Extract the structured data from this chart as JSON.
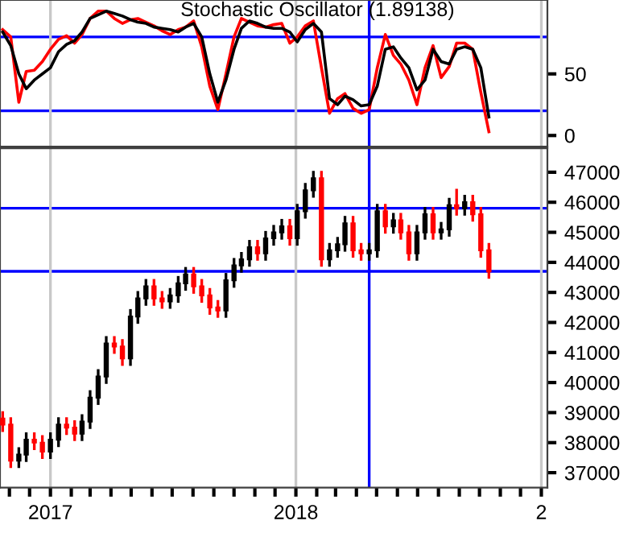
{
  "chart_data": [
    {
      "type": "line",
      "title": "Stochastic Oscillator (1.89138)",
      "x": [
        "2016-10-22",
        "2016-11-03",
        "2016-11-15",
        "2016-11-26",
        "2016-12-08",
        "2016-12-20",
        "2017-01-01",
        "2017-01-13",
        "2017-01-25",
        "2017-02-06",
        "2017-02-17",
        "2017-03-01",
        "2017-03-13",
        "2017-03-25",
        "2017-04-06",
        "2017-04-18",
        "2017-04-30",
        "2017-05-11",
        "2017-05-23",
        "2017-06-04",
        "2017-06-16",
        "2017-06-28",
        "2017-07-10",
        "2017-07-21",
        "2017-08-02",
        "2017-08-14",
        "2017-08-26",
        "2017-09-07",
        "2017-09-19",
        "2017-10-01",
        "2017-10-12",
        "2017-10-24",
        "2017-11-05",
        "2017-11-17",
        "2017-11-29",
        "2017-12-11",
        "2017-12-23",
        "2018-01-03",
        "2018-01-15",
        "2018-01-27",
        "2018-02-08",
        "2018-02-20",
        "2018-03-04",
        "2018-03-15",
        "2018-03-27",
        "2018-04-08",
        "2018-04-20",
        "2018-05-02",
        "2018-05-14",
        "2018-05-26",
        "2018-06-06",
        "2018-06-18",
        "2018-06-30",
        "2018-07-12",
        "2018-07-24",
        "2018-08-05",
        "2018-08-17",
        "2018-08-28",
        "2018-09-09",
        "2018-09-21",
        "2018-10-03",
        "2018-10-15"
      ],
      "series": [
        {
          "color": "#ff0000",
          "values": [
            86,
            80,
            27,
            52,
            53,
            60,
            70,
            78,
            81,
            75,
            82,
            95,
            101,
            101,
            95,
            91,
            94,
            95,
            92,
            89,
            85,
            82,
            86,
            88,
            93,
            72,
            40,
            21,
            50,
            80,
            95,
            92,
            89,
            88,
            90,
            91,
            75,
            80,
            89,
            93,
            55,
            18,
            30,
            34,
            22,
            18,
            21,
            55,
            82,
            65,
            58,
            45,
            25,
            55,
            73,
            47,
            56,
            75,
            75,
            70,
            35,
            3
          ]
        },
        {
          "color": "#000000",
          "values": [
            84,
            73,
            50,
            38,
            45,
            50,
            55,
            68,
            74,
            77,
            84,
            95,
            98,
            101,
            99,
            97,
            94,
            92,
            91,
            88,
            87,
            86,
            84,
            88,
            91,
            80,
            50,
            27,
            45,
            70,
            87,
            93,
            91,
            88,
            87,
            87,
            84,
            76,
            86,
            91,
            84,
            30,
            25,
            32,
            29,
            24,
            25,
            40,
            70,
            72,
            63,
            55,
            37,
            45,
            70,
            60,
            58,
            70,
            72,
            70,
            55,
            15
          ]
        }
      ],
      "xlim": [
        "2016-10-18",
        "2019-01-10"
      ],
      "ylim": [
        -9,
        110
      ],
      "yticks": [
        0,
        50
      ],
      "tick_labels": "y",
      "ref_lines": [
        {
          "axis": "y",
          "value": 80,
          "color": "#0000ff"
        },
        {
          "axis": "y",
          "value": 20,
          "color": "#0000ff"
        },
        {
          "axis": "x",
          "value": "2018-04-20",
          "color": "#0000ff"
        },
        {
          "axis": "x",
          "value": "2017-01-01",
          "color": "#c8c8c8"
        },
        {
          "axis": "x",
          "value": "2018-01-01",
          "color": "#c8c8c8"
        },
        {
          "axis": "x",
          "value": "2019-01-01",
          "color": "#c8c8c8"
        }
      ]
    },
    {
      "type": "candlestick",
      "x": [
        "2016-10-22",
        "2016-11-03",
        "2016-11-15",
        "2016-11-26",
        "2016-12-08",
        "2016-12-20",
        "2017-01-01",
        "2017-01-13",
        "2017-01-25",
        "2017-02-06",
        "2017-02-17",
        "2017-03-01",
        "2017-03-13",
        "2017-03-25",
        "2017-04-06",
        "2017-04-18",
        "2017-04-30",
        "2017-05-11",
        "2017-05-23",
        "2017-06-04",
        "2017-06-16",
        "2017-06-28",
        "2017-07-10",
        "2017-07-21",
        "2017-08-02",
        "2017-08-14",
        "2017-08-26",
        "2017-09-07",
        "2017-09-19",
        "2017-10-01",
        "2017-10-12",
        "2017-10-24",
        "2017-11-05",
        "2017-11-17",
        "2017-11-29",
        "2017-12-11",
        "2017-12-23",
        "2018-01-03",
        "2018-01-15",
        "2018-01-27",
        "2018-02-08",
        "2018-02-20",
        "2018-03-04",
        "2018-03-15",
        "2018-03-27",
        "2018-04-08",
        "2018-04-20",
        "2018-05-02",
        "2018-05-14",
        "2018-05-26",
        "2018-06-06",
        "2018-06-18",
        "2018-06-30",
        "2018-07-12",
        "2018-07-24",
        "2018-08-05",
        "2018-08-17",
        "2018-08-28",
        "2018-09-09",
        "2018-09-21",
        "2018-10-03",
        "2018-10-15"
      ],
      "ohlc": [
        [
          38800,
          39000,
          38400,
          38600
        ],
        [
          38600,
          38800,
          37200,
          37400
        ],
        [
          37400,
          37800,
          37200,
          37600
        ],
        [
          37600,
          38300,
          37400,
          38100
        ],
        [
          38100,
          38300,
          37800,
          38000
        ],
        [
          38000,
          38200,
          37500,
          37700
        ],
        [
          37700,
          38300,
          37500,
          38100
        ],
        [
          38100,
          38800,
          37900,
          38600
        ],
        [
          38600,
          38800,
          38300,
          38500
        ],
        [
          38500,
          38700,
          38100,
          38300
        ],
        [
          38300,
          38900,
          38100,
          38700
        ],
        [
          38700,
          39700,
          38500,
          39500
        ],
        [
          39500,
          40400,
          39300,
          40200
        ],
        [
          40200,
          41500,
          40000,
          41300
        ],
        [
          41300,
          41500,
          41000,
          41200
        ],
        [
          41200,
          41400,
          40600,
          40800
        ],
        [
          40800,
          42400,
          40600,
          42200
        ],
        [
          42200,
          43000,
          42000,
          42800
        ],
        [
          42800,
          43400,
          42600,
          43200
        ],
        [
          43200,
          43400,
          42600,
          42800
        ],
        [
          42800,
          43000,
          42500,
          42700
        ],
        [
          42700,
          43100,
          42500,
          42900
        ],
        [
          42900,
          43500,
          42700,
          43300
        ],
        [
          43300,
          43800,
          43100,
          43600
        ],
        [
          43600,
          43800,
          43000,
          43200
        ],
        [
          43200,
          43400,
          42700,
          42900
        ],
        [
          42900,
          43100,
          42300,
          42500
        ],
        [
          42500,
          42700,
          42200,
          42400
        ],
        [
          42400,
          43600,
          42200,
          43400
        ],
        [
          43400,
          44100,
          43200,
          43900
        ],
        [
          43900,
          44300,
          43700,
          44100
        ],
        [
          44100,
          44700,
          43900,
          44500
        ],
        [
          44500,
          44700,
          44100,
          44300
        ],
        [
          44300,
          45000,
          44100,
          44800
        ],
        [
          44800,
          45200,
          44600,
          45000
        ],
        [
          45000,
          45400,
          44800,
          45200
        ],
        [
          45200,
          45400,
          44600,
          44800
        ],
        [
          44800,
          45900,
          44600,
          45700
        ],
        [
          45700,
          46600,
          45500,
          46400
        ],
        [
          46400,
          47000,
          46200,
          46800
        ],
        [
          46800,
          47000,
          43900,
          44100
        ],
        [
          44100,
          44600,
          43900,
          44400
        ],
        [
          44400,
          44800,
          44200,
          44600
        ],
        [
          44600,
          45500,
          44400,
          45300
        ],
        [
          45300,
          45500,
          44200,
          44400
        ],
        [
          44400,
          44600,
          44100,
          44300
        ],
        [
          44300,
          44600,
          44100,
          44400
        ],
        [
          44400,
          45900,
          44200,
          45700
        ],
        [
          45700,
          45900,
          45000,
          45200
        ],
        [
          45200,
          45600,
          45000,
          45400
        ],
        [
          45400,
          45600,
          44800,
          45000
        ],
        [
          45000,
          45200,
          44100,
          44300
        ],
        [
          44300,
          45200,
          44100,
          45000
        ],
        [
          45000,
          45800,
          44800,
          45600
        ],
        [
          45600,
          45800,
          44800,
          45000
        ],
        [
          45000,
          45300,
          44800,
          45100
        ],
        [
          45100,
          46100,
          44900,
          45900
        ],
        [
          45900,
          46400,
          45600,
          45800
        ],
        [
          45800,
          46200,
          45600,
          46000
        ],
        [
          46000,
          46200,
          45400,
          45600
        ],
        [
          45600,
          45800,
          44200,
          44400
        ],
        [
          44400,
          44600,
          43500,
          43700
        ]
      ],
      "colors": [
        "#ff0000",
        "#ff0000",
        "#000000",
        "#000000",
        "#ff0000",
        "#ff0000",
        "#000000",
        "#000000",
        "#ff0000",
        "#ff0000",
        "#000000",
        "#000000",
        "#000000",
        "#000000",
        "#ff0000",
        "#ff0000",
        "#000000",
        "#000000",
        "#000000",
        "#ff0000",
        "#ff0000",
        "#000000",
        "#000000",
        "#000000",
        "#ff0000",
        "#ff0000",
        "#ff0000",
        "#ff0000",
        "#000000",
        "#000000",
        "#000000",
        "#000000",
        "#ff0000",
        "#000000",
        "#000000",
        "#000000",
        "#ff0000",
        "#000000",
        "#000000",
        "#000000",
        "#ff0000",
        "#000000",
        "#000000",
        "#000000",
        "#ff0000",
        "#ff0000",
        "#000000",
        "#000000",
        "#ff0000",
        "#000000",
        "#ff0000",
        "#ff0000",
        "#000000",
        "#000000",
        "#ff0000",
        "#000000",
        "#000000",
        "#ff0000",
        "#000000",
        "#ff0000",
        "#ff0000",
        "#ff0000"
      ],
      "xlim": [
        "2016-10-18",
        "2019-01-10"
      ],
      "ylim": [
        36500,
        47800
      ],
      "yticks": [
        37000,
        38000,
        39000,
        40000,
        41000,
        42000,
        43000,
        44000,
        45000,
        46000,
        47000
      ],
      "xticks": [
        {
          "value": "2016-11-01",
          "label": null
        },
        {
          "value": "2016-12-01",
          "label": null
        },
        {
          "value": "2017-01-01",
          "label": "2017"
        },
        {
          "value": "2017-02-01",
          "label": null
        },
        {
          "value": "2017-03-01",
          "label": null
        },
        {
          "value": "2017-04-01",
          "label": null
        },
        {
          "value": "2017-05-01",
          "label": null
        },
        {
          "value": "2017-06-01",
          "label": null
        },
        {
          "value": "2017-07-01",
          "label": null
        },
        {
          "value": "2017-08-01",
          "label": null
        },
        {
          "value": "2017-09-01",
          "label": null
        },
        {
          "value": "2017-10-01",
          "label": null
        },
        {
          "value": "2017-11-01",
          "label": null
        },
        {
          "value": "2017-12-01",
          "label": null
        },
        {
          "value": "2018-01-01",
          "label": "2018"
        },
        {
          "value": "2018-02-01",
          "label": null
        },
        {
          "value": "2018-03-01",
          "label": null
        },
        {
          "value": "2018-04-01",
          "label": null
        },
        {
          "value": "2018-05-01",
          "label": null
        },
        {
          "value": "2018-06-01",
          "label": null
        },
        {
          "value": "2018-07-01",
          "label": null
        },
        {
          "value": "2018-08-01",
          "label": null
        },
        {
          "value": "2018-09-01",
          "label": null
        },
        {
          "value": "2018-10-01",
          "label": null
        },
        {
          "value": "2018-11-01",
          "label": null
        },
        {
          "value": "2018-12-01",
          "label": null
        },
        {
          "value": "2019-01-01",
          "label": "2"
        }
      ],
      "ref_lines": [
        {
          "axis": "y",
          "value": 45800,
          "color": "#0000ff"
        },
        {
          "axis": "y",
          "value": 43700,
          "color": "#0000ff"
        },
        {
          "axis": "x",
          "value": "2018-04-20",
          "color": "#0000ff"
        },
        {
          "axis": "x",
          "value": "2017-01-01",
          "color": "#c8c8c8"
        },
        {
          "axis": "x",
          "value": "2018-01-01",
          "color": "#c8c8c8"
        },
        {
          "axis": "x",
          "value": "2019-01-01",
          "color": "#c8c8c8"
        }
      ]
    }
  ]
}
